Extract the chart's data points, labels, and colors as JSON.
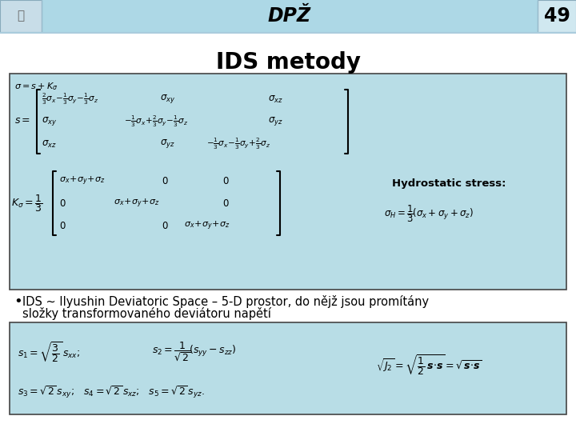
{
  "bg_color": "#ffffff",
  "header_bg": "#add8e6",
  "header_text": "DPŽ",
  "header_slide_num": "49",
  "title": "IDS metody",
  "box1_bg": "#b8dde6",
  "box1_border": "#444444",
  "box2_bg": "#b8dde6",
  "box2_border": "#444444",
  "bullet_text": "IDS ~ Ilyushin Deviatoric Space – 5-D prostor, do nějž jsou promítány",
  "bullet_text2": "složky transformovaného deviátoru napětí",
  "hydrostatic_label": "Hydrostatic stress:",
  "logo_color": "#aaaaaa"
}
